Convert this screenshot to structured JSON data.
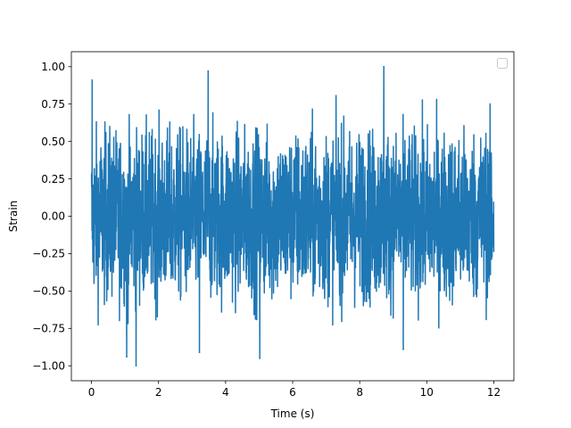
{
  "chart_data": {
    "type": "line",
    "title": "",
    "xlabel": "Time (s)",
    "ylabel": "Strain",
    "xlim": [
      -0.6,
      12.6
    ],
    "ylim": [
      -1.1,
      1.1
    ],
    "xticks": [
      0,
      2,
      4,
      6,
      8,
      10,
      12
    ],
    "yticks": [
      -1.0,
      -0.75,
      -0.5,
      -0.25,
      0.0,
      0.25,
      0.5,
      0.75,
      1.0
    ],
    "xtick_labels": [
      "0",
      "2",
      "4",
      "6",
      "8",
      "10",
      "12"
    ],
    "ytick_labels": [
      "−1.00",
      "−0.75",
      "−0.50",
      "−0.25",
      "0.00",
      "0.25",
      "0.50",
      "0.75",
      "1.00"
    ],
    "grid": false,
    "legend": {
      "placement": "upper-right",
      "entries": []
    },
    "colors": {
      "series": "#1f77b4",
      "axes": "#000000",
      "legend_border": "#cccccc"
    },
    "series": [
      {
        "name": "",
        "x_range": [
          0,
          12
        ],
        "envelope": {
          "typical_max": 0.55,
          "typical_min": -0.55,
          "global_max": 1.0,
          "global_min": -1.0
        },
        "notable_points": [
          {
            "x": 0.02,
            "y": 0.91
          },
          {
            "x": 1.33,
            "y": -1.0
          },
          {
            "x": 3.48,
            "y": 0.97
          },
          {
            "x": 3.22,
            "y": -0.91
          },
          {
            "x": 5.02,
            "y": -0.95
          },
          {
            "x": 8.72,
            "y": 1.0
          },
          {
            "x": 1.05,
            "y": -0.94
          },
          {
            "x": 9.3,
            "y": -0.89
          }
        ]
      }
    ]
  }
}
